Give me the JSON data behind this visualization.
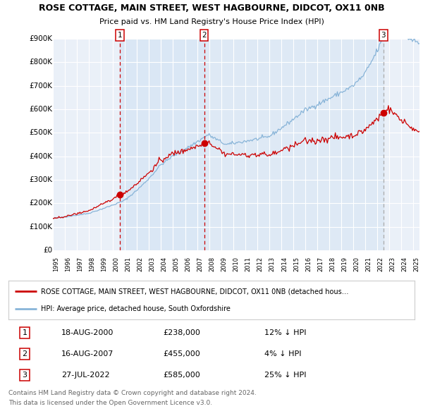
{
  "title1": "ROSE COTTAGE, MAIN STREET, WEST HAGBOURNE, DIDCOT, OX11 0NB",
  "title2": "Price paid vs. HM Land Registry's House Price Index (HPI)",
  "ylim": [
    0,
    900000
  ],
  "yticks": [
    0,
    100000,
    200000,
    300000,
    400000,
    500000,
    600000,
    700000,
    800000,
    900000
  ],
  "ytick_labels": [
    "£0",
    "£100K",
    "£200K",
    "£300K",
    "£400K",
    "£500K",
    "£600K",
    "£700K",
    "£800K",
    "£900K"
  ],
  "sale_prices": [
    238000,
    455000,
    585000
  ],
  "sale_labels": [
    "1",
    "2",
    "3"
  ],
  "sale_date_strs": [
    "18-AUG-2000",
    "16-AUG-2007",
    "27-JUL-2022"
  ],
  "sale_pct_strs": [
    "12% ↓ HPI",
    "4% ↓ HPI",
    "25% ↓ HPI"
  ],
  "sale_price_strs": [
    "£238,000",
    "£455,000",
    "£585,000"
  ],
  "legend_line1": "ROSE COTTAGE, MAIN STREET, WEST HAGBOURNE, DIDCOT, OX11 0NB (detached hous…",
  "legend_line2": "HPI: Average price, detached house, South Oxfordshire",
  "footer1": "Contains HM Land Registry data © Crown copyright and database right 2024.",
  "footer2": "This data is licensed under the Open Government Licence v3.0.",
  "hpi_color": "#88b4d8",
  "price_color": "#cc0000",
  "bg_plot": "#eaf0f8",
  "bg_shade": "#d4e4f4",
  "vline_red": "#cc0000",
  "vline_gray": "#aaaaaa"
}
